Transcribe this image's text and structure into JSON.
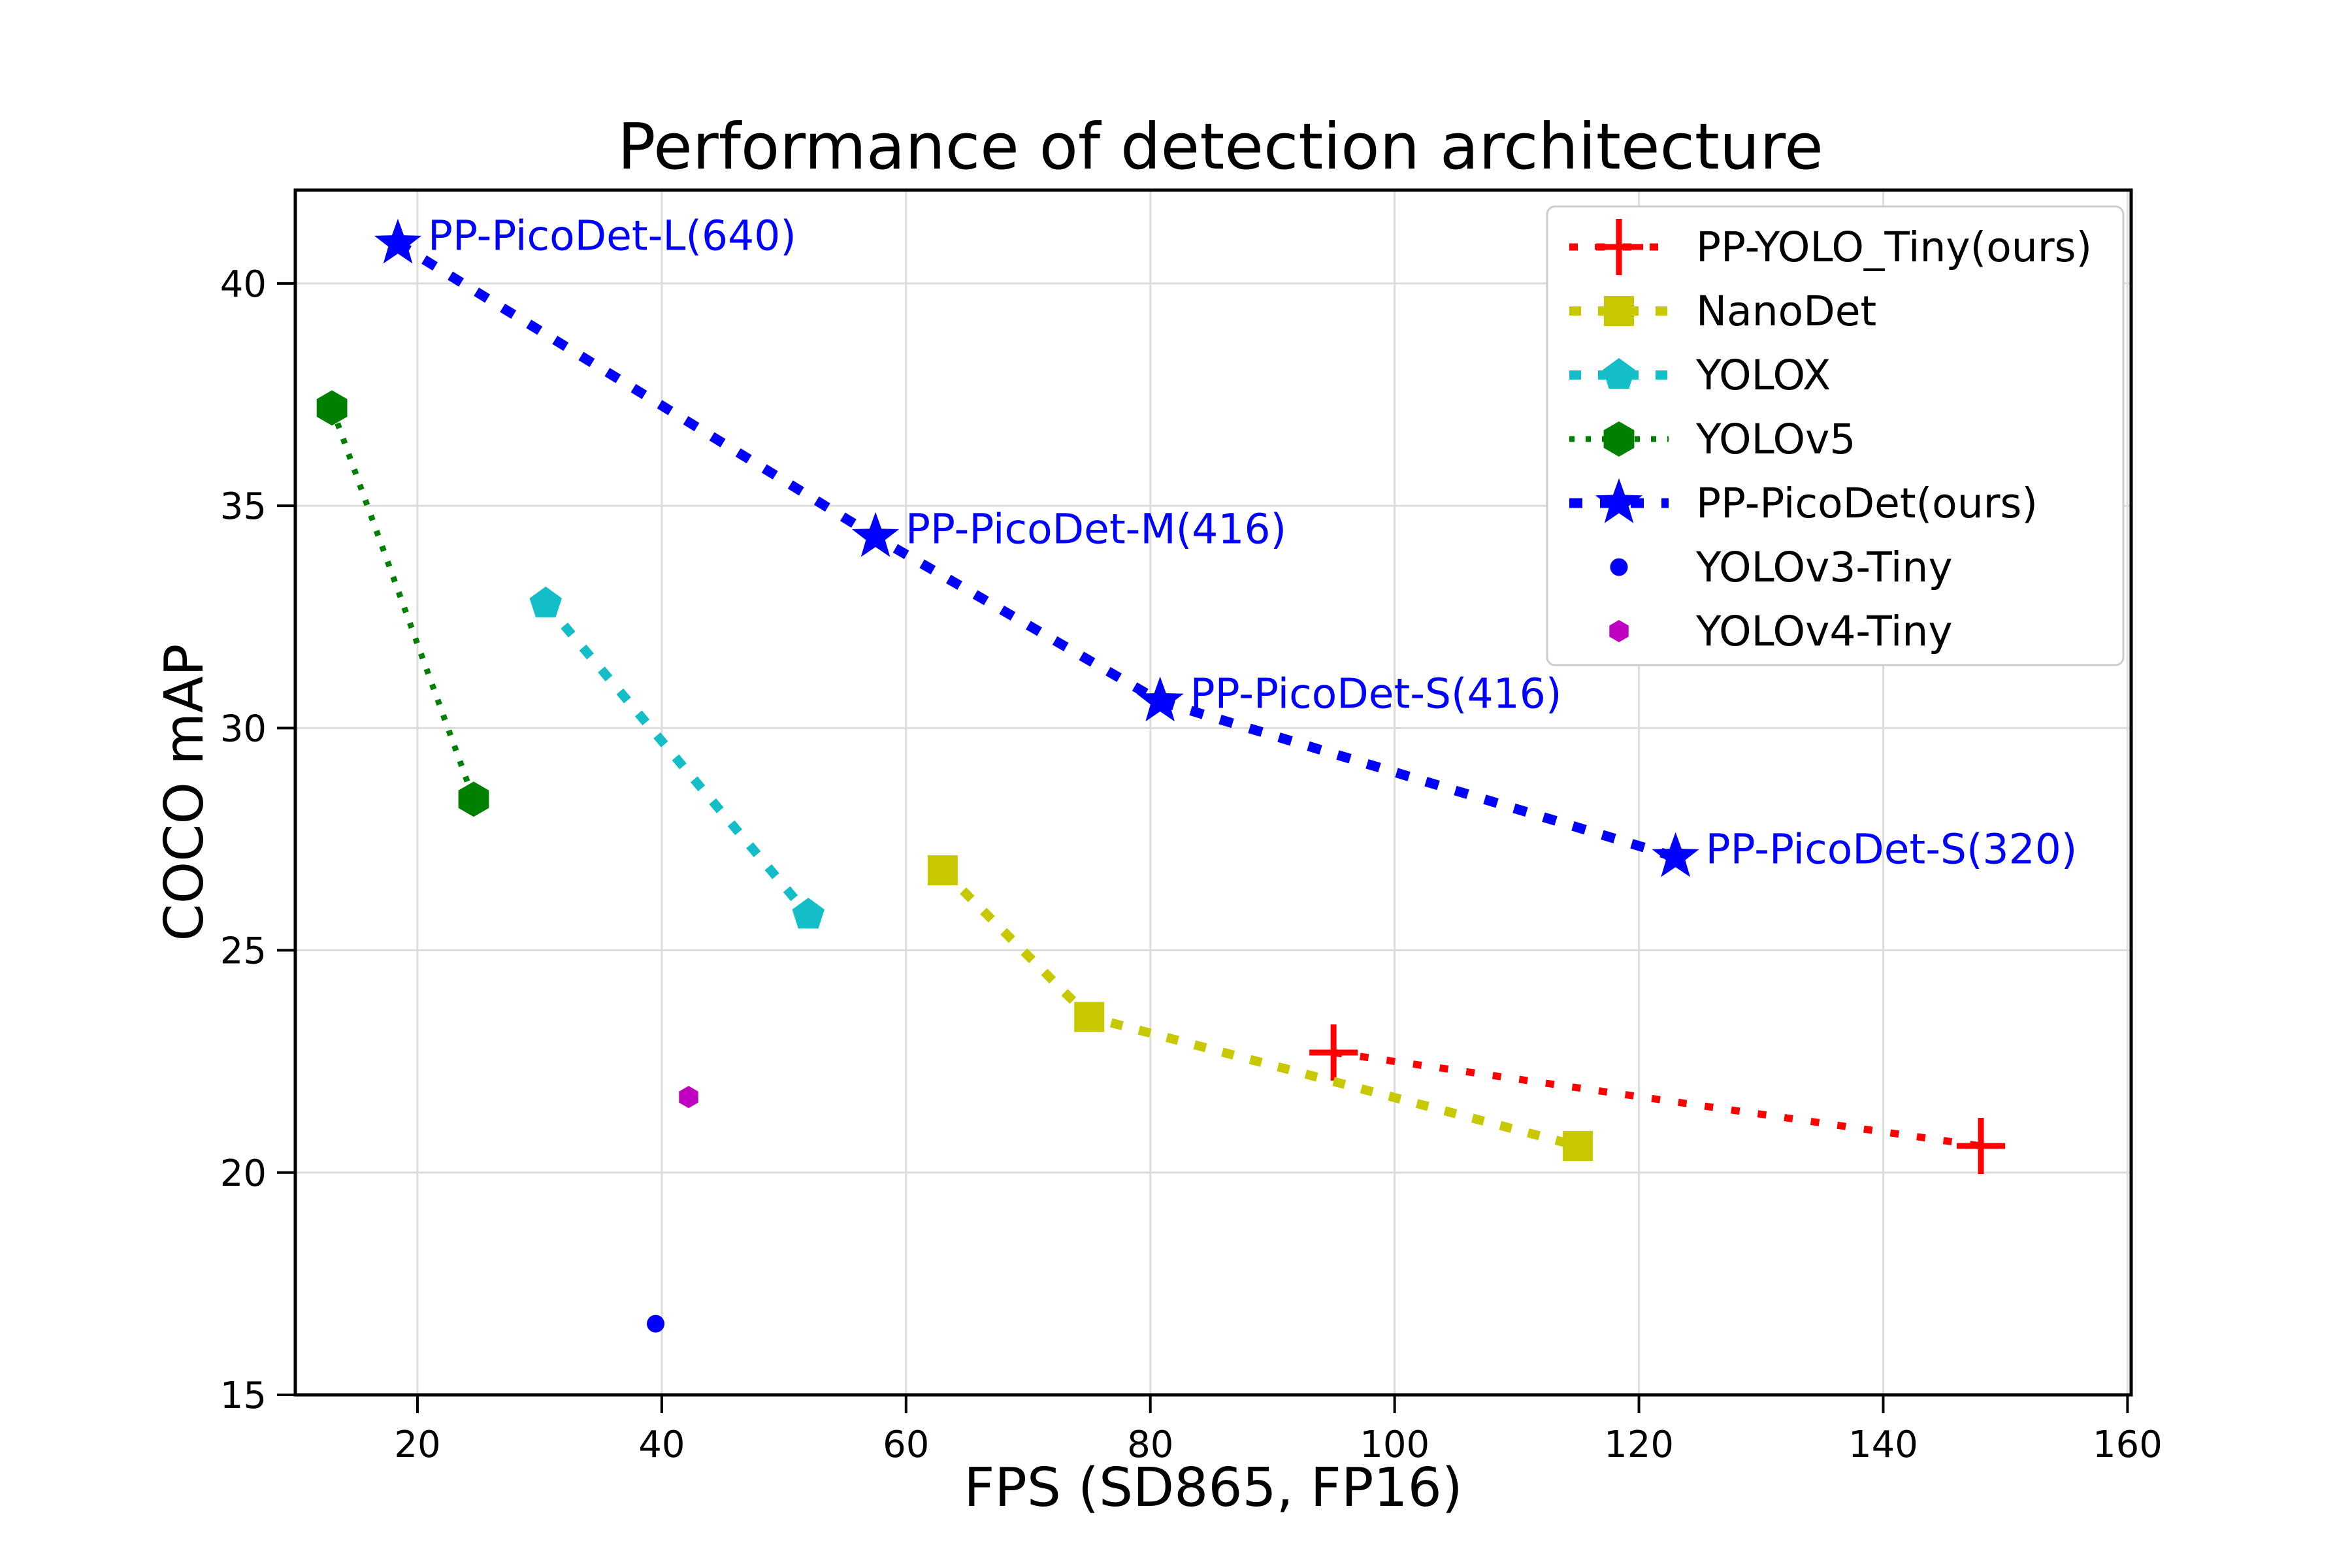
{
  "chart_data": {
    "type": "line",
    "title": "Performance of detection architecture",
    "xlabel": "FPS (SD865, FP16)",
    "ylabel": "COCO mAP",
    "xlim": [
      10,
      160.3
    ],
    "ylim": [
      15,
      42.1
    ],
    "xticks": [
      20,
      40,
      60,
      80,
      100,
      120,
      140,
      160
    ],
    "yticks": [
      15,
      20,
      25,
      30,
      35,
      40
    ],
    "grid": true,
    "legend_position": "upper right",
    "series": [
      {
        "name": "PP-YOLO_Tiny(ours)",
        "color": "#ff0000",
        "marker": "plus",
        "line": "dashed",
        "points": [
          {
            "fps": 95,
            "map": 22.7
          },
          {
            "fps": 148,
            "map": 20.6
          }
        ]
      },
      {
        "name": "NanoDet",
        "color": "#c8c800",
        "marker": "square",
        "line": "dashed",
        "points": [
          {
            "fps": 63,
            "map": 26.8
          },
          {
            "fps": 75,
            "map": 23.5
          },
          {
            "fps": 115,
            "map": 20.6
          }
        ]
      },
      {
        "name": "YOLOX",
        "color": "#14bec8",
        "marker": "pentagon",
        "line": "dashed",
        "points": [
          {
            "fps": 30.5,
            "map": 32.8
          },
          {
            "fps": 52,
            "map": 25.8
          }
        ]
      },
      {
        "name": "YOLOv5",
        "color": "#008000",
        "marker": "hexagon",
        "line": "dotted",
        "points": [
          {
            "fps": 13,
            "map": 37.2
          },
          {
            "fps": 24.6,
            "map": 28.4
          }
        ]
      },
      {
        "name": "PP-PicoDet(ours)",
        "color": "#0000ff",
        "marker": "star",
        "line": "dashed",
        "points": [
          {
            "fps": 18.4,
            "map": 40.9
          },
          {
            "fps": 57.5,
            "map": 34.3
          },
          {
            "fps": 80.8,
            "map": 30.6
          },
          {
            "fps": 123,
            "map": 27.1
          }
        ]
      },
      {
        "name": "YOLOv3-Tiny",
        "color": "#0000ff",
        "marker": "dot",
        "line": "none",
        "points": [
          {
            "fps": 39.5,
            "map": 16.6
          }
        ]
      },
      {
        "name": "YOLOv4-Tiny",
        "color": "#c000c0",
        "marker": "hexagon-small",
        "line": "none",
        "points": [
          {
            "fps": 42.2,
            "map": 21.7
          }
        ]
      }
    ],
    "annotations": [
      {
        "text": "PP-PicoDet-L(640)",
        "fps": 18.4,
        "map": 40.9
      },
      {
        "text": "PP-PicoDet-M(416)",
        "fps": 57.5,
        "map": 34.3
      },
      {
        "text": "PP-PicoDet-S(416)",
        "fps": 80.8,
        "map": 30.6
      },
      {
        "text": "PP-PicoDet-S(320)",
        "fps": 123,
        "map": 27.1
      }
    ],
    "annotation_color": "#0000ff",
    "grid_color": "#dcdcdc",
    "legend_border_color": "#cccccc"
  }
}
